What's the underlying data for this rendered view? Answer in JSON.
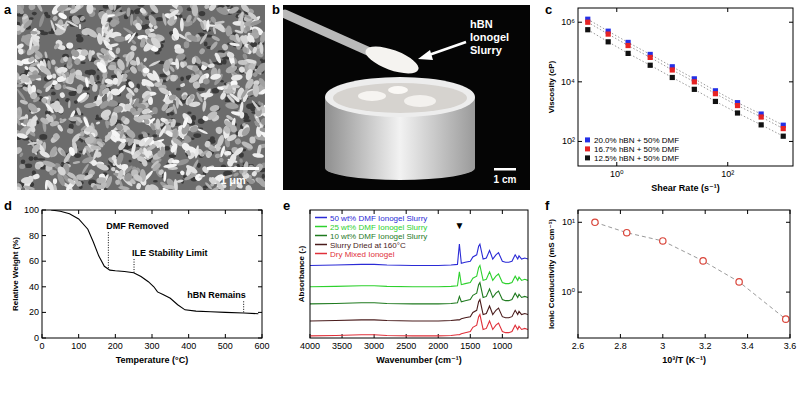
{
  "chart_data": [
    {
      "panel": "a",
      "type": "image",
      "scale_bar": "1 μm"
    },
    {
      "panel": "b",
      "type": "image",
      "annotations": [
        {
          "text": "hBN Ionogel Slurry"
        }
      ],
      "scale_bar": "1 cm"
    },
    {
      "panel": "c",
      "type": "scatter",
      "x_label": "Shear Rate (s⁻¹)",
      "y_label": "Viscosity (cP)",
      "log": true,
      "x": [
        0.3,
        0.7,
        1.6,
        4,
        10,
        25,
        60,
        150,
        400,
        1000
      ],
      "series": [
        {
          "name": "20.0% hBN + 50% DMF",
          "color": "#2430e6",
          "marker": "square",
          "line_style": "dotted",
          "values": [
            1260000,
            500000,
            210000,
            83000,
            32000,
            12600,
            5000,
            2000,
            830,
            350
          ]
        },
        {
          "name": "16.7% hBN + 50% DMF",
          "color": "#e62424",
          "marker": "square",
          "line_style": "dotted",
          "values": [
            1000000,
            400000,
            165000,
            66000,
            25000,
            10000,
            4000,
            1600,
            660,
            270
          ]
        },
        {
          "name": "12.5% hBN + 50% DMF",
          "color": "#111111",
          "marker": "square",
          "line_style": "dotted",
          "values": [
            560000,
            220000,
            90000,
            36000,
            14000,
            5600,
            2200,
            900,
            360,
            150
          ]
        }
      ],
      "xlim": [
        0.2,
        1500
      ],
      "ylim": [
        15,
        3000000
      ],
      "xticks": [
        {
          "value": 1,
          "label": "10⁰"
        },
        {
          "value": 100,
          "label": "10²"
        }
      ],
      "yticks": [
        {
          "value": 100,
          "label": "10²"
        },
        {
          "value": 10000,
          "label": "10⁴"
        },
        {
          "value": 1000000,
          "label": "10⁶"
        }
      ],
      "legend": "lower left"
    },
    {
      "panel": "d",
      "type": "line",
      "x_label": "Temperature (°C)",
      "y_label": "Relative Weight (%)",
      "x": [
        25,
        50,
        75,
        100,
        125,
        140,
        155,
        170,
        185,
        200,
        225,
        250,
        270,
        290,
        305,
        315,
        330,
        350,
        370,
        390,
        420,
        460,
        500,
        550,
        590
      ],
      "series": [
        {
          "color": "#000000",
          "values": [
            100,
            99,
            97,
            93,
            85,
            75,
            64,
            56,
            53,
            52.5,
            52,
            51,
            48,
            44,
            40,
            36,
            34,
            31,
            26,
            22,
            21,
            20.5,
            20,
            19.5,
            19
          ]
        }
      ],
      "xlim": [
        0,
        600
      ],
      "ylim": [
        0,
        100
      ],
      "xticks": [
        0,
        100,
        200,
        300,
        400,
        500,
        600
      ],
      "yticks": [
        0,
        20,
        40,
        60,
        80,
        100
      ],
      "annotations": [
        {
          "text": "DMF Removed",
          "x": 181,
          "y": 85
        },
        {
          "text": "ILE Stability Limit",
          "x": 251,
          "y": 64
        },
        {
          "text": "hBN Remains",
          "x": 550,
          "y": 31
        }
      ]
    },
    {
      "panel": "e",
      "type": "line",
      "x_label": "Wavenumber (cm⁻¹)",
      "y_label": "Absorbance (-)",
      "x": [
        4000,
        3600,
        3200,
        3000,
        2800,
        2400,
        2000,
        1800,
        1700,
        1670,
        1640,
        1580,
        1500,
        1460,
        1400,
        1370,
        1350,
        1300,
        1250,
        1200,
        1180,
        1150,
        1100,
        1060,
        1000,
        950,
        900,
        850,
        800,
        760,
        740,
        700,
        650,
        600
      ],
      "series": [
        {
          "name": "50 wt% DMF Ionogel Slurry",
          "color": "#2b2bd6",
          "values": [
            3.4,
            3.42,
            3.45,
            3.45,
            3.42,
            3.4,
            3.4,
            3.42,
            3.45,
            4.4,
            3.5,
            3.55,
            3.6,
            3.8,
            3.9,
            4.3,
            4.4,
            3.7,
            3.75,
            4.1,
            3.95,
            3.7,
            3.9,
            4.0,
            3.6,
            3.55,
            3.55,
            3.6,
            3.9,
            3.7,
            3.85,
            3.7,
            3.75,
            3.7
          ]
        },
        {
          "name": "25 wt% DMF Ionogel Slurry",
          "color": "#2ed12e",
          "values": [
            2.4,
            2.42,
            2.45,
            2.45,
            2.42,
            2.4,
            2.4,
            2.42,
            2.45,
            3.1,
            2.5,
            2.55,
            2.6,
            2.8,
            2.9,
            3.3,
            3.4,
            2.7,
            2.75,
            3.1,
            2.95,
            2.7,
            2.9,
            3.0,
            2.6,
            2.55,
            2.55,
            2.6,
            2.9,
            2.7,
            2.85,
            2.7,
            2.75,
            2.7
          ]
        },
        {
          "name": "10 wt% DMF Ionogel Slurry",
          "color": "#1f7a1f",
          "values": [
            1.6,
            1.62,
            1.65,
            1.65,
            1.62,
            1.6,
            1.6,
            1.62,
            1.65,
            1.95,
            1.7,
            1.75,
            1.8,
            2.0,
            2.1,
            2.5,
            2.6,
            1.9,
            1.95,
            2.3,
            2.15,
            1.9,
            2.1,
            2.2,
            1.8,
            1.75,
            1.75,
            1.8,
            2.1,
            1.9,
            2.05,
            1.9,
            1.95,
            1.9
          ]
        },
        {
          "name": "Slurry Dried at 160°C",
          "color": "#4a1c1c",
          "values": [
            0.8,
            0.82,
            0.85,
            0.85,
            0.82,
            0.8,
            0.8,
            0.82,
            0.85,
            0.85,
            0.9,
            0.95,
            1.0,
            1.2,
            1.3,
            1.7,
            1.8,
            1.1,
            1.15,
            1.5,
            1.35,
            1.1,
            1.3,
            1.4,
            1.0,
            0.95,
            0.95,
            1.0,
            1.3,
            1.1,
            1.25,
            1.1,
            1.15,
            1.1
          ]
        },
        {
          "name": "Dry Mixed Ionogel",
          "color": "#e0303a",
          "values": [
            0.1,
            0.12,
            0.15,
            0.15,
            0.12,
            0.1,
            0.1,
            0.12,
            0.15,
            0.15,
            0.2,
            0.25,
            0.3,
            0.5,
            0.6,
            1.0,
            1.1,
            0.4,
            0.45,
            0.8,
            0.65,
            0.4,
            0.6,
            0.7,
            0.3,
            0.25,
            0.25,
            0.3,
            0.6,
            0.4,
            0.55,
            0.4,
            0.45,
            0.4
          ]
        }
      ],
      "xlim": [
        4000,
        600
      ],
      "ylim": [
        0,
        6
      ],
      "xticks": [
        4000,
        3500,
        3000,
        2500,
        2000,
        1500,
        1000
      ],
      "tick_labels": "x",
      "legend": "upper left",
      "annotations": [
        {
          "text": "▼",
          "x": 1670,
          "y": 5.1
        }
      ]
    },
    {
      "panel": "f",
      "type": "line",
      "x_label": "10³/T (K⁻¹)",
      "y_label": "Ionic Conductivity (mS cm⁻¹)",
      "log": "y",
      "x": [
        2.68,
        2.83,
        3,
        3.19,
        3.36,
        3.58
      ],
      "series": [
        {
          "color": "#d9453a",
          "marker": "circle",
          "line_style": "dashed",
          "values": [
            10,
            7.1,
            5.4,
            2.8,
            1.4,
            0.41
          ]
        }
      ],
      "xlim": [
        2.6,
        3.6
      ],
      "ylim": [
        0.22,
        15
      ],
      "xticks": [
        2.6,
        2.8,
        3,
        3.2,
        3.4,
        3.6
      ],
      "yticks": [
        {
          "value": 1,
          "label": "10⁰"
        },
        {
          "value": 10,
          "label": "10¹"
        }
      ]
    }
  ]
}
